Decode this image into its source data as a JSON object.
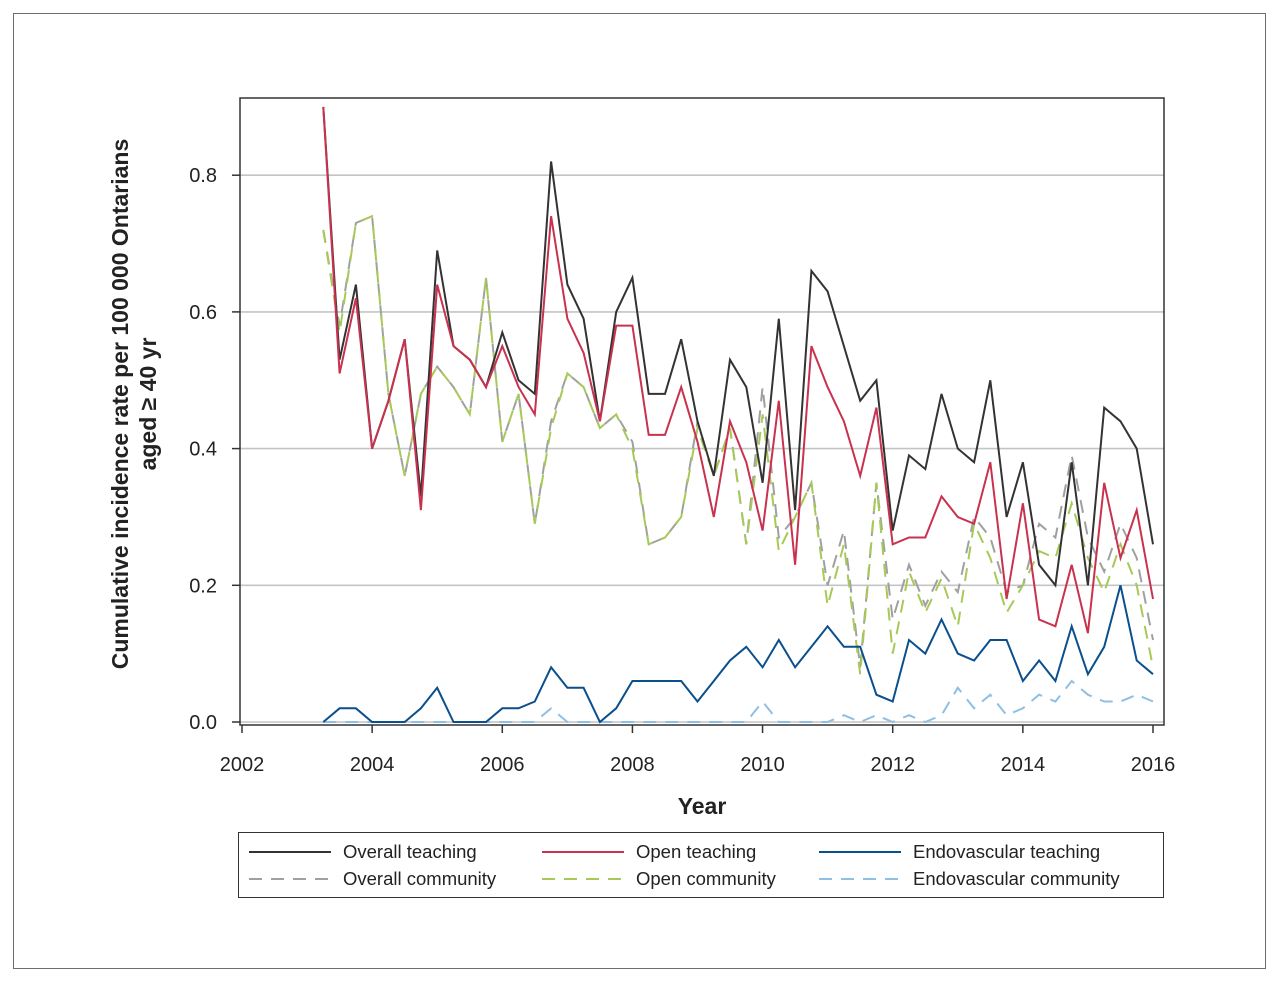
{
  "chart_data": {
    "type": "line",
    "title": "",
    "xlabel": "Year",
    "ylabel_line1": "Cumulative incidence rate per 100 000 Ontarians",
    "ylabel_line2": "aged ≥ 40 yr",
    "xlim": [
      2002,
      2016
    ],
    "ylim": [
      0,
      0.92
    ],
    "x_ticks": [
      2002,
      2004,
      2006,
      2008,
      2010,
      2012,
      2014,
      2016
    ],
    "x_tick_labels": [
      "2002",
      "2004",
      "2006",
      "2008",
      "2010",
      "2012",
      "2014",
      "2016"
    ],
    "y_ticks": [
      0.0,
      0.2,
      0.4,
      0.6,
      0.8
    ],
    "y_tick_labels": [
      "0.0",
      "0.2",
      "0.4",
      "0.6",
      "0.8"
    ],
    "horizontal_grid": true,
    "legend_position": "bottom",
    "x": [
      2003.25,
      2003.5,
      2003.75,
      2004.0,
      2004.25,
      2004.5,
      2004.75,
      2005.0,
      2005.25,
      2005.5,
      2005.75,
      2006.0,
      2006.25,
      2006.5,
      2006.75,
      2007.0,
      2007.25,
      2007.5,
      2007.75,
      2008.0,
      2008.25,
      2008.5,
      2008.75,
      2009.0,
      2009.25,
      2009.5,
      2009.75,
      2010.0,
      2010.25,
      2010.5,
      2010.75,
      2011.0,
      2011.25,
      2011.5,
      2011.75,
      2012.0,
      2012.25,
      2012.5,
      2012.75,
      2013.0,
      2013.25,
      2013.5,
      2013.75,
      2014.0,
      2014.25,
      2014.5,
      2014.75,
      2015.0,
      2015.25,
      2015.5,
      2015.75,
      2016.0
    ],
    "series": [
      {
        "name": "Overall teaching",
        "color": "#333333",
        "dash": "solid",
        "values": [
          0.9,
          0.53,
          0.64,
          0.4,
          0.47,
          0.56,
          0.33,
          0.69,
          0.55,
          0.53,
          0.49,
          0.57,
          0.5,
          0.48,
          0.82,
          0.64,
          0.59,
          0.44,
          0.6,
          0.65,
          0.48,
          0.48,
          0.56,
          0.44,
          0.36,
          0.53,
          0.49,
          0.35,
          0.59,
          0.31,
          0.66,
          0.63,
          0.55,
          0.47,
          0.5,
          0.28,
          0.39,
          0.37,
          0.48,
          0.4,
          0.38,
          0.5,
          0.3,
          0.38,
          0.23,
          0.2,
          0.38,
          0.2,
          0.46,
          0.44,
          0.4,
          0.26
        ]
      },
      {
        "name": "Open teaching",
        "color": "#c8324e",
        "dash": "solid",
        "values": [
          0.9,
          0.51,
          0.62,
          0.4,
          0.47,
          0.56,
          0.31,
          0.64,
          0.55,
          0.53,
          0.49,
          0.55,
          0.49,
          0.45,
          0.74,
          0.59,
          0.54,
          0.44,
          0.58,
          0.58,
          0.42,
          0.42,
          0.49,
          0.41,
          0.3,
          0.44,
          0.38,
          0.28,
          0.47,
          0.23,
          0.55,
          0.49,
          0.44,
          0.36,
          0.46,
          0.26,
          0.27,
          0.27,
          0.33,
          0.3,
          0.29,
          0.38,
          0.18,
          0.32,
          0.15,
          0.14,
          0.23,
          0.13,
          0.35,
          0.24,
          0.31,
          0.18
        ]
      },
      {
        "name": "Endovascular teaching",
        "color": "#0b4f8c",
        "dash": "solid",
        "values": [
          0.0,
          0.02,
          0.02,
          0.0,
          0.0,
          0.0,
          0.02,
          0.05,
          0.0,
          0.0,
          0.0,
          0.02,
          0.02,
          0.03,
          0.08,
          0.05,
          0.05,
          0.0,
          0.02,
          0.06,
          0.06,
          0.06,
          0.06,
          0.03,
          0.06,
          0.09,
          0.11,
          0.08,
          0.12,
          0.08,
          0.11,
          0.14,
          0.11,
          0.11,
          0.04,
          0.03,
          0.12,
          0.1,
          0.15,
          0.1,
          0.09,
          0.12,
          0.12,
          0.06,
          0.09,
          0.06,
          0.14,
          0.07,
          0.11,
          0.2,
          0.09,
          0.07
        ]
      },
      {
        "name": "Overall community",
        "color": "#a0a0a0",
        "dash": "dashed",
        "values": [
          0.72,
          0.58,
          0.73,
          0.74,
          0.48,
          0.36,
          0.48,
          0.52,
          0.49,
          0.45,
          0.65,
          0.41,
          0.48,
          0.29,
          0.44,
          0.51,
          0.49,
          0.43,
          0.45,
          0.41,
          0.26,
          0.27,
          0.3,
          0.44,
          0.36,
          0.43,
          0.26,
          0.49,
          0.27,
          0.3,
          0.35,
          0.2,
          0.28,
          0.08,
          0.35,
          0.15,
          0.23,
          0.17,
          0.22,
          0.19,
          0.3,
          0.27,
          0.19,
          0.2,
          0.29,
          0.27,
          0.39,
          0.27,
          0.22,
          0.29,
          0.24,
          0.12
        ]
      },
      {
        "name": "Open community",
        "color": "#a7c957",
        "dash": "dashed",
        "values": [
          0.72,
          0.57,
          0.73,
          0.74,
          0.48,
          0.36,
          0.48,
          0.52,
          0.49,
          0.45,
          0.65,
          0.41,
          0.48,
          0.29,
          0.43,
          0.51,
          0.49,
          0.43,
          0.45,
          0.4,
          0.26,
          0.27,
          0.3,
          0.43,
          0.36,
          0.43,
          0.26,
          0.45,
          0.25,
          0.3,
          0.35,
          0.17,
          0.26,
          0.07,
          0.35,
          0.1,
          0.22,
          0.16,
          0.21,
          0.14,
          0.29,
          0.24,
          0.16,
          0.2,
          0.25,
          0.24,
          0.32,
          0.24,
          0.19,
          0.26,
          0.2,
          0.08
        ]
      },
      {
        "name": "Endovascular community",
        "color": "#8fbfe3",
        "dash": "dashed",
        "values": [
          0.0,
          0.0,
          0.0,
          0.0,
          0.0,
          0.0,
          0.0,
          0.0,
          0.0,
          0.0,
          0.0,
          0.0,
          0.0,
          0.0,
          0.02,
          0.0,
          0.0,
          0.0,
          0.0,
          0.0,
          0.0,
          0.0,
          0.0,
          0.0,
          0.0,
          0.0,
          0.0,
          0.03,
          0.0,
          0.0,
          0.0,
          0.0,
          0.01,
          0.0,
          0.01,
          0.0,
          0.01,
          0.0,
          0.01,
          0.05,
          0.02,
          0.04,
          0.01,
          0.02,
          0.04,
          0.03,
          0.06,
          0.04,
          0.03,
          0.03,
          0.04,
          0.03
        ]
      }
    ]
  }
}
